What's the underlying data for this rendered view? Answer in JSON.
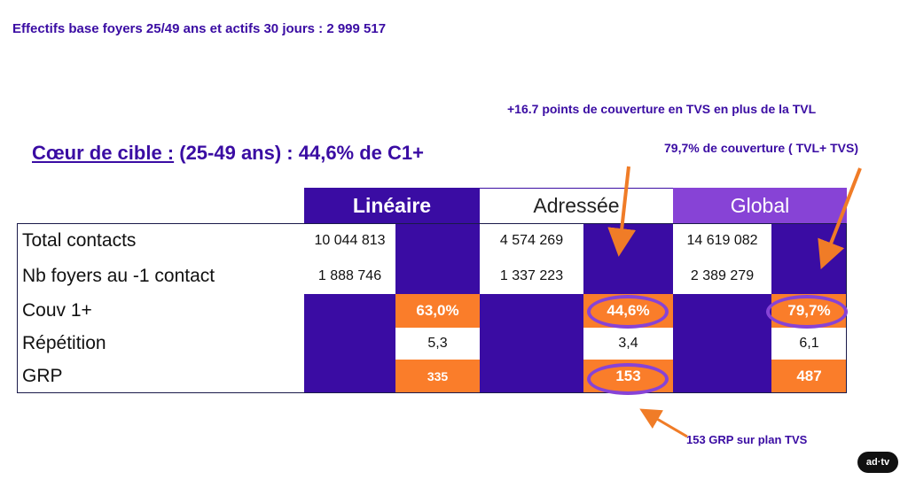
{
  "header": {
    "text": "Effectifs base foyers  25/49 ans et actifs 30 jours : 2 999 517"
  },
  "notes": {
    "tvs_points": "+16.7 points de couverture en TVS en plus de la TVL",
    "global_coverage": "79,7% de couverture ( TVL+ TVS)",
    "grp_plan": "153 GRP sur plan TVS"
  },
  "heading": {
    "prefix": "Cœur de cible :",
    "suffix": " (25-49 ans) : 44,6% de C1+"
  },
  "table": {
    "columns": [
      "Linéaire",
      "Adressée",
      "Global"
    ],
    "rows": [
      "Total contacts",
      "Nb foyers au -1 contact",
      "Couv 1+",
      "Répétition",
      "GRP"
    ],
    "lineaire": {
      "total_contacts": "10 044 813",
      "nb_foyers": "1 888 746",
      "couv": "63,0%",
      "repetition": "5,3",
      "grp": "335"
    },
    "adressee": {
      "total_contacts": "4 574 269",
      "nb_foyers": "1 337 223",
      "couv": "44,6%",
      "repetition": "3,4",
      "grp": "153"
    },
    "global": {
      "total_contacts": "14 619 082",
      "nb_foyers": "2 389 279",
      "couv": "79,7%",
      "repetition": "6,1",
      "grp": "487"
    }
  },
  "colors": {
    "navy": "#3a0ca3",
    "orange": "#fa7d2a",
    "purple": "#8743d6",
    "arrow": "#f07c27"
  },
  "logo": {
    "text": "ad·tv"
  }
}
